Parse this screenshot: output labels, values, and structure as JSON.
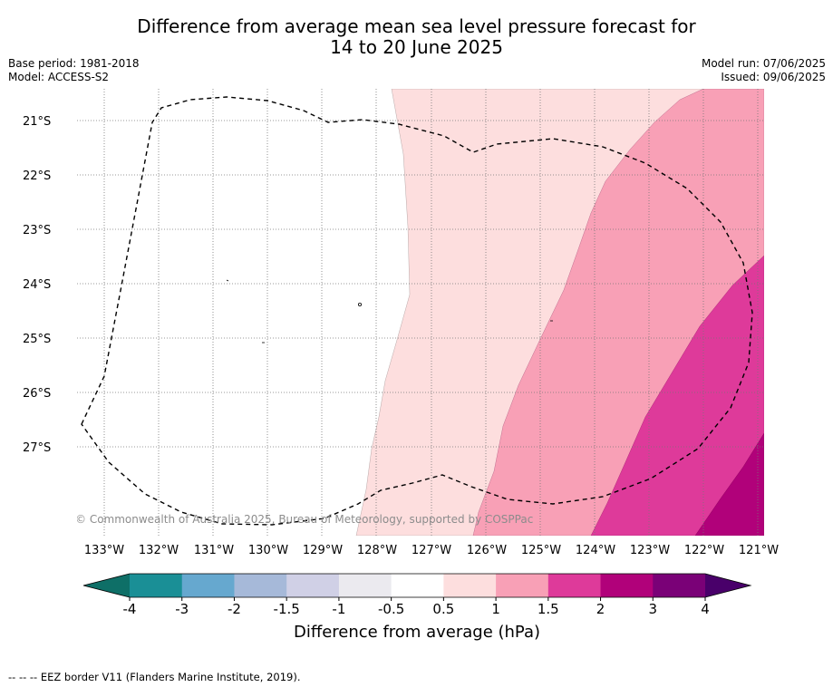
{
  "title_line1": "Difference from average mean sea level pressure forecast for",
  "title_line2": "14 to 20 June 2025",
  "base_period": "Base period: 1981-2018",
  "model": "Model: ACCESS-S2",
  "model_run": "Model run: 07/06/2025",
  "issued": "Issued: 09/06/2025",
  "copyright": "© Commonwealth of Australia 2025, Bureau of Meteorology, supported by COSPPac",
  "lat_labels": [
    "21°S",
    "22°S",
    "23°S",
    "24°S",
    "25°S",
    "26°S",
    "27°S"
  ],
  "lon_labels": [
    "133°W",
    "132°W",
    "131°W",
    "130°W",
    "129°W",
    "128°W",
    "127°W",
    "126°W",
    "125°W",
    "124°W",
    "123°W",
    "122°W",
    "121°W"
  ],
  "colorbar": {
    "ticks": [
      "-4",
      "-3",
      "-2",
      "-1.5",
      "-1",
      "-0.5",
      "0.5",
      "1",
      "1.5",
      "2",
      "3",
      "4"
    ],
    "colors": [
      "#1a8f96",
      "#66a8cf",
      "#a6b9d9",
      "#d0d0e6",
      "#ebeaef",
      "#ffffff",
      "#fddede",
      "#f8a0b6",
      "#de3a9a",
      "#b1017a",
      "#7a0177"
    ],
    "under_color": "#0e6f67",
    "over_color": "#49006a",
    "label": "Difference from average (hPa)"
  },
  "footnote": "--  --  -- EEZ border V11 (Flanders Marine Institute, 2019)."
}
